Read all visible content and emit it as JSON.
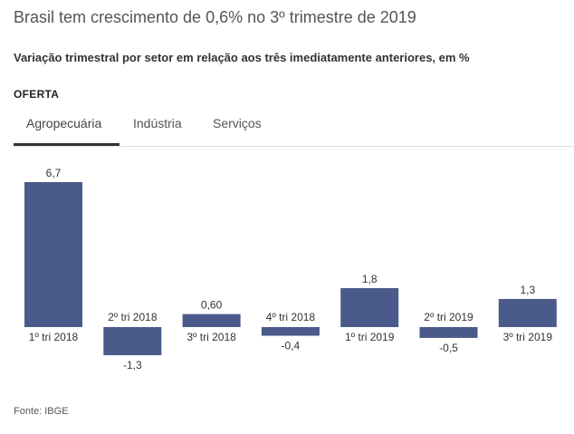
{
  "title": "Brasil tem crescimento de 0,6% no 3º trimestre de 2019",
  "subtitle": "Variação trimestral por setor em relação aos três imediatamente anteriores, em %",
  "section": "OFERTA",
  "tabs": [
    {
      "label": "Agropecuária",
      "active": true
    },
    {
      "label": "Indústria",
      "active": false
    },
    {
      "label": "Serviços",
      "active": false
    }
  ],
  "colors": {
    "bar": "#4a5a8a",
    "text": "#333333"
  },
  "chart_data": {
    "type": "bar",
    "categories": [
      "1º tri 2018",
      "2º tri 2018",
      "3º tri 2018",
      "4º tri 2018",
      "1º tri 2019",
      "2º tri 2019",
      "3º tri 2019"
    ],
    "values": [
      6.7,
      -1.3,
      0.6,
      -0.4,
      1.8,
      -0.5,
      1.3
    ],
    "value_labels": [
      "6,7",
      "-1,3",
      "0,60",
      "-0,4",
      "1,8",
      "-0,5",
      "1,3"
    ],
    "xlabel": "",
    "ylabel": "",
    "ylim": [
      -1.3,
      6.7
    ],
    "grid": false,
    "legend": "none"
  },
  "source": "Fonte: IBGE"
}
